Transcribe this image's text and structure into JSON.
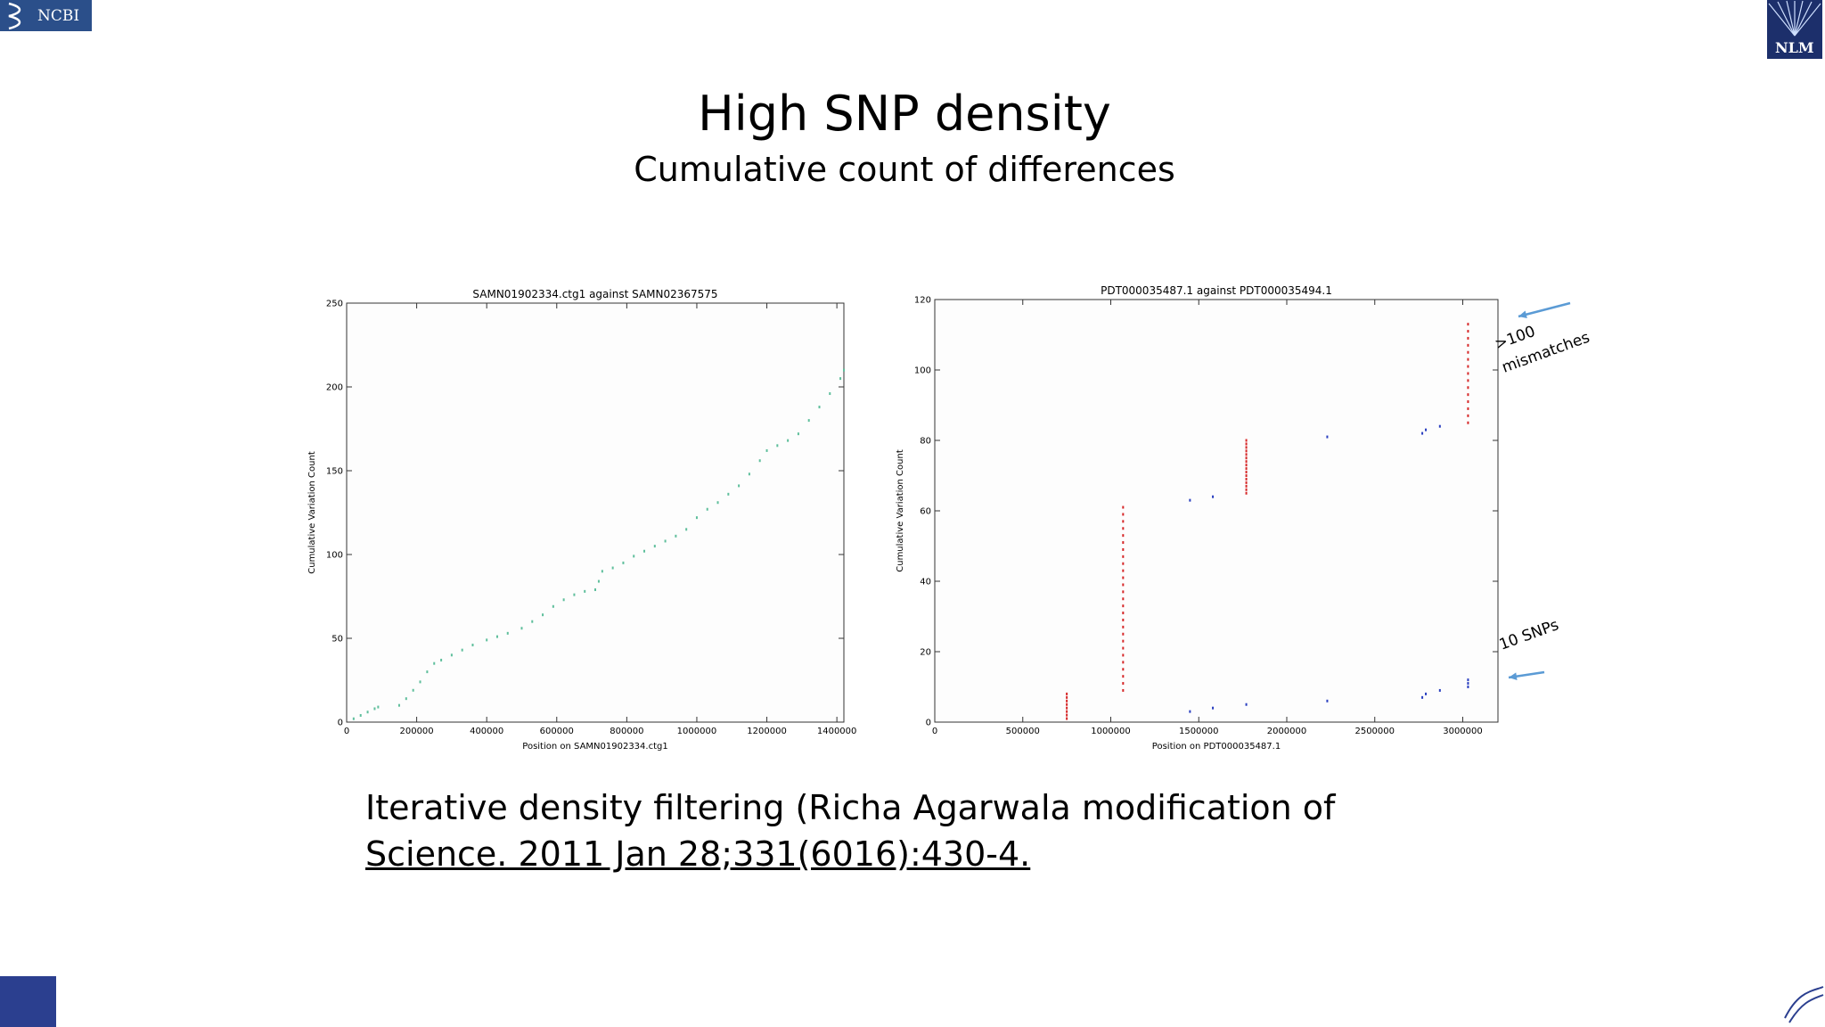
{
  "logos": {
    "top_left": "NCBI",
    "top_right": "NLM"
  },
  "slide": {
    "title": "High SNP density",
    "subtitle": "Cumulative count of differences",
    "body": [
      "Iterative density filtering (Richa Agarwala modification of",
      "Science. 2011 Jan 28;331(6016):430-4."
    ]
  },
  "chart_data": [
    {
      "type": "scatter",
      "title": "SAMN01902334.ctg1 against SAMN02367575",
      "x_label": "Position on SAMN01902334.ctg1",
      "y_label": "Cumulative Variation Count",
      "xlim": [
        0,
        1420000
      ],
      "xticks": [
        0,
        200000,
        400000,
        600000,
        800000,
        1000000,
        1200000,
        1400000
      ],
      "ylim": [
        0,
        250
      ],
      "yticks": [
        0,
        50,
        100,
        150,
        200,
        250
      ],
      "series": [
        {
          "color": "#5fbf9c",
          "x": [
            20000,
            40000,
            60000,
            80000,
            90000,
            150000,
            170000,
            190000,
            210000,
            230000,
            250000,
            270000,
            300000,
            330000,
            360000,
            400000,
            430000,
            460000,
            500000,
            530000,
            560000,
            590000,
            620000,
            650000,
            680000,
            710000,
            720000,
            730000,
            760000,
            790000,
            820000,
            850000,
            880000,
            910000,
            940000,
            970000,
            1000000,
            1030000,
            1060000,
            1090000,
            1120000,
            1150000,
            1180000,
            1200000,
            1230000,
            1260000,
            1290000,
            1320000,
            1350000,
            1380000,
            1410000,
            1420000
          ],
          "values": [
            2,
            4,
            6,
            8,
            9,
            10,
            14,
            19,
            24,
            30,
            35,
            37,
            40,
            43,
            46,
            49,
            51,
            53,
            56,
            60,
            64,
            69,
            73,
            76,
            78,
            79,
            84,
            90,
            92,
            95,
            99,
            102,
            105,
            108,
            111,
            115,
            122,
            127,
            131,
            136,
            141,
            148,
            156,
            162,
            165,
            168,
            172,
            180,
            188,
            196,
            205,
            210
          ]
        }
      ]
    },
    {
      "type": "scatter",
      "title": "PDT000035487.1 against PDT000035494.1",
      "x_label": "Position on PDT000035487.1",
      "y_label": "Cumulative Variation Count",
      "xlim": [
        0,
        3200000
      ],
      "xticks": [
        0,
        500000,
        1000000,
        1500000,
        2000000,
        2500000,
        3000000
      ],
      "ylim": [
        0,
        120
      ],
      "yticks": [
        0,
        20,
        40,
        60,
        80,
        100,
        120
      ],
      "annotations": [
        ">100",
        "mismatches",
        "10 SNPs"
      ],
      "series": [
        {
          "color": "#d62728",
          "x": [
            750000,
            750000,
            750000,
            750000,
            750000,
            750000,
            750000,
            750000,
            1070000,
            1070000,
            1070000,
            1070000,
            1070000,
            1070000,
            1070000,
            1070000,
            1070000,
            1070000,
            1070000,
            1070000,
            1070000,
            1070000,
            1070000,
            1070000,
            1070000,
            1070000,
            1070000,
            1070000,
            1070000,
            1070000,
            1070000,
            1070000,
            1070000,
            1070000,
            1070000,
            1770000,
            1770000,
            1770000,
            1770000,
            1770000,
            1770000,
            1770000,
            1770000,
            1770000,
            1770000,
            1770000,
            1770000,
            1770000,
            1770000,
            1770000,
            1770000,
            3030000,
            3030000,
            3030000,
            3030000,
            3030000,
            3030000,
            3030000,
            3030000,
            3030000,
            3030000,
            3030000,
            3030000,
            3030000,
            3030000,
            3030000
          ],
          "values": [
            1,
            2,
            3,
            4,
            5,
            6,
            7,
            8,
            9,
            11,
            13,
            15,
            17,
            19,
            21,
            23,
            25,
            27,
            29,
            31,
            33,
            35,
            37,
            39,
            41,
            43,
            45,
            47,
            49,
            51,
            53,
            55,
            57,
            59,
            61,
            65,
            66,
            67,
            68,
            69,
            70,
            71,
            72,
            73,
            74,
            75,
            76,
            77,
            78,
            79,
            80,
            85,
            87,
            89,
            91,
            93,
            95,
            97,
            99,
            101,
            103,
            105,
            107,
            109,
            111,
            113
          ]
        },
        {
          "color": "#2a3fc0",
          "x": [
            1450000,
            1450000,
            1580000,
            1580000,
            1770000,
            2230000,
            2230000,
            2770000,
            2770000,
            2790000,
            2790000,
            2870000,
            2870000,
            3030000,
            3030000,
            3030000
          ],
          "values": [
            3,
            63,
            4,
            64,
            5,
            6,
            81,
            7,
            82,
            8,
            83,
            9,
            84,
            10,
            11,
            12
          ]
        }
      ]
    }
  ]
}
